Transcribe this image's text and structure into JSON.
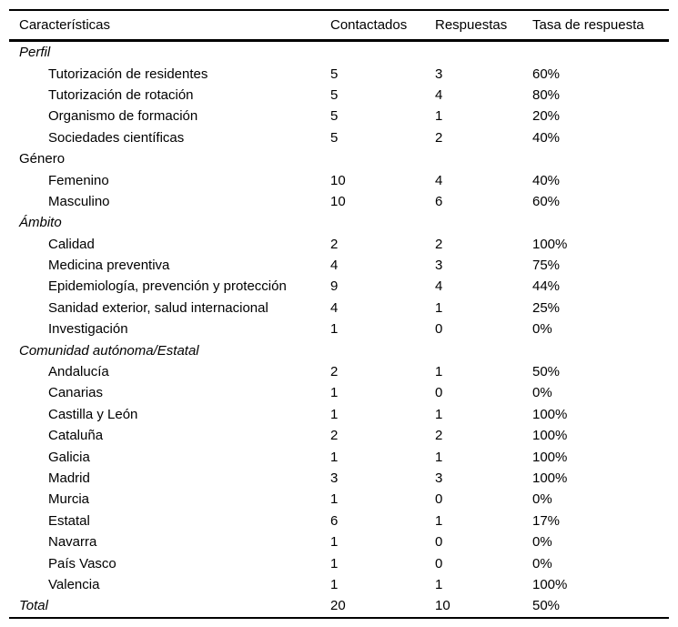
{
  "table": {
    "header": {
      "caracteristicas": "Características",
      "contactados": "Contactados",
      "respuestas": "Respuestas",
      "tasa": "Tasa de respuesta"
    },
    "sections": [
      {
        "label": "Perfil",
        "italic": true,
        "rows": [
          {
            "label": "Tutorización de residentes",
            "contactados": "5",
            "respuestas": "3",
            "tasa": "60%"
          },
          {
            "label": "Tutorización de rotación",
            "contactados": "5",
            "respuestas": "4",
            "tasa": "80%"
          },
          {
            "label": "Organismo de formación",
            "contactados": "5",
            "respuestas": "1",
            "tasa": "20%"
          },
          {
            "label": "Sociedades científicas",
            "contactados": "5",
            "respuestas": "2",
            "tasa": "40%"
          }
        ]
      },
      {
        "label": "Género",
        "italic": false,
        "rows": [
          {
            "label": "Femenino",
            "contactados": "10",
            "respuestas": "4",
            "tasa": "40%"
          },
          {
            "label": "Masculino",
            "contactados": "10",
            "respuestas": "6",
            "tasa": "60%"
          }
        ]
      },
      {
        "label": "Ámbito",
        "italic": true,
        "rows": [
          {
            "label": "Calidad",
            "contactados": "2",
            "respuestas": "2",
            "tasa": "100%"
          },
          {
            "label": "Medicina preventiva",
            "contactados": "4",
            "respuestas": "3",
            "tasa": "75%"
          },
          {
            "label": "Epidemiología, prevención y protección",
            "contactados": "9",
            "respuestas": "4",
            "tasa": "44%"
          },
          {
            "label": "Sanidad exterior, salud internacional",
            "contactados": "4",
            "respuestas": "1",
            "tasa": "25%"
          },
          {
            "label": "Investigación",
            "contactados": "1",
            "respuestas": "0",
            "tasa": "0%"
          }
        ]
      },
      {
        "label": "Comunidad autónoma/Estatal",
        "italic": true,
        "rows": [
          {
            "label": "Andalucía",
            "contactados": "2",
            "respuestas": "1",
            "tasa": "50%"
          },
          {
            "label": "Canarias",
            "contactados": "1",
            "respuestas": "0",
            "tasa": "0%"
          },
          {
            "label": "Castilla y León",
            "contactados": "1",
            "respuestas": "1",
            "tasa": "100%"
          },
          {
            "label": "Cataluña",
            "contactados": "2",
            "respuestas": "2",
            "tasa": "100%"
          },
          {
            "label": "Galicia",
            "contactados": "1",
            "respuestas": "1",
            "tasa": "100%"
          },
          {
            "label": "Madrid",
            "contactados": "3",
            "respuestas": "3",
            "tasa": "100%"
          },
          {
            "label": "Murcia",
            "contactados": "1",
            "respuestas": "0",
            "tasa": "0%"
          },
          {
            "label": "Estatal",
            "contactados": "6",
            "respuestas": "1",
            "tasa": "17%"
          },
          {
            "label": "Navarra",
            "contactados": "1",
            "respuestas": "0",
            "tasa": "0%"
          },
          {
            "label": "País Vasco",
            "contactados": "1",
            "respuestas": "0",
            "tasa": "0%"
          },
          {
            "label": "Valencia",
            "contactados": "1",
            "respuestas": "1",
            "tasa": "100%"
          }
        ]
      }
    ],
    "total": {
      "label": "Total",
      "italic": true,
      "contactados": "20",
      "respuestas": "10",
      "tasa": "50%"
    }
  },
  "colors": {
    "background": "#ffffff",
    "text": "#000000",
    "border": "#000000"
  }
}
